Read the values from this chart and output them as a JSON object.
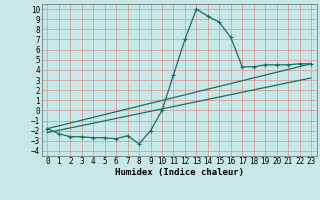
{
  "title": "",
  "xlabel": "Humidex (Indice chaleur)",
  "bg_color": "#c8e8e8",
  "grid_color": "#d4a0a0",
  "line_color": "#1a6e60",
  "xlim": [
    -0.5,
    23.5
  ],
  "ylim": [
    -4.5,
    10.5
  ],
  "xticks": [
    0,
    1,
    2,
    3,
    4,
    5,
    6,
    7,
    8,
    9,
    10,
    11,
    12,
    13,
    14,
    15,
    16,
    17,
    18,
    19,
    20,
    21,
    22,
    23
  ],
  "yticks": [
    -4,
    -3,
    -2,
    -1,
    0,
    1,
    2,
    3,
    4,
    5,
    6,
    7,
    8,
    9,
    10
  ],
  "line1_x": [
    0,
    1,
    2,
    3,
    4,
    5,
    6,
    7,
    8,
    9,
    10,
    11,
    12,
    13,
    14,
    15,
    16,
    17,
    18,
    19,
    20,
    21,
    22,
    23
  ],
  "line1_y": [
    -1.8,
    -2.3,
    -2.6,
    -2.6,
    -2.7,
    -2.7,
    -2.8,
    -2.5,
    -3.3,
    -2.0,
    0.0,
    3.5,
    7.0,
    10.0,
    9.3,
    8.7,
    7.2,
    4.3,
    4.3,
    4.5,
    4.5,
    4.5,
    4.6,
    4.6
  ],
  "line2_x": [
    0,
    23
  ],
  "line2_y": [
    -1.8,
    4.6
  ],
  "line3_x": [
    0,
    23
  ],
  "line3_y": [
    -2.2,
    3.2
  ],
  "tick_fontsize": 5.5,
  "xlabel_fontsize": 6.5,
  "linewidth": 0.9,
  "marker_size": 3.5
}
